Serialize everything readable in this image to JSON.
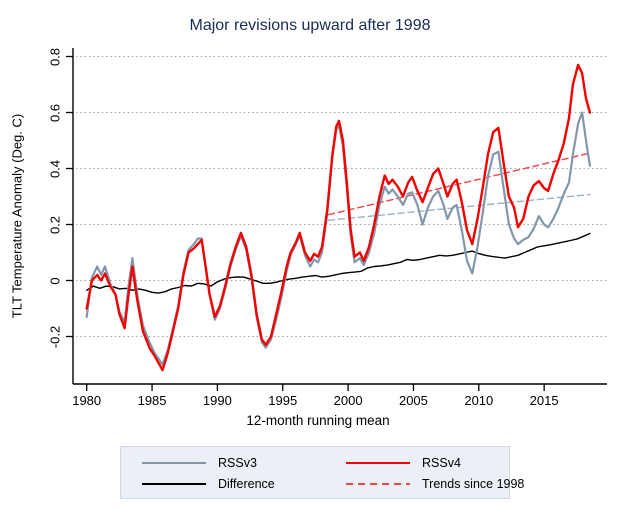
{
  "title": "Major revisions upward after 1998",
  "axes": {
    "x_label": "12-month running mean",
    "y_label": "TLT Temperature Anomaly (Deg. C)",
    "x_tick_labels": [
      "1980",
      "1985",
      "1990",
      "1995",
      "2000",
      "2005",
      "2010",
      "2015"
    ],
    "x_tick_values": [
      1980,
      1985,
      1990,
      1995,
      2000,
      2005,
      2010,
      2015
    ],
    "y_tick_labels": [
      "0.8",
      "0.6",
      "0.4",
      "0.2",
      "0",
      "-0.2"
    ],
    "y_tick_values": [
      0.8,
      0.6,
      0.4,
      0.2,
      0,
      -0.2
    ]
  },
  "colors": {
    "title_navy": "#1a2c55",
    "rssv3": "#8297ac",
    "rssv4": "#f40000",
    "difference": "#000000",
    "trend_rssv4": "#ef4348",
    "trend_rssv3": "#9cb0c6",
    "grid": "#a3a3a3",
    "axis": "#000000",
    "legend_bg": "#ebf0f6",
    "legend_border": "#d3d9e0"
  },
  "legend": {
    "items": [
      {
        "id": "rssv3",
        "label": "RSSv3",
        "style": "solid",
        "color": "#8297ac"
      },
      {
        "id": "rssv4",
        "label": "RSSv4",
        "style": "solid",
        "color": "#f40000"
      },
      {
        "id": "difference",
        "label": "Difference",
        "style": "solid",
        "color": "#000000"
      },
      {
        "id": "trends-since-1998",
        "label": "Trends since 1998",
        "style": "dashed",
        "color": "#ef4348"
      }
    ]
  },
  "chart_data": {
    "type": "line",
    "title": "Major revisions upward after 1998",
    "xlabel": "12-month running mean",
    "ylabel": "TLT Temperature Anomaly (Deg. C)",
    "xlim": [
      1979,
      2019.8
    ],
    "ylim": [
      -0.37,
      0.83
    ],
    "grid": "horizontal-dotted",
    "legend_position": "bottom",
    "series": [
      {
        "id": "trend-rssv3",
        "name": "RSSv3 trend since 1998",
        "style": "dashed",
        "color": "#9cb0c6",
        "x": [
          1998.5,
          2018.5
        ],
        "y": [
          0.215,
          0.307
        ]
      },
      {
        "id": "trend-rssv4",
        "name": "RSSv4 trend since 1998",
        "style": "dashed",
        "color": "#ef4348",
        "x": [
          1998.5,
          2018.5
        ],
        "y": [
          0.235,
          0.455
        ]
      },
      {
        "id": "difference",
        "name": "Difference",
        "style": "solid",
        "color": "#000000",
        "x": [
          1980,
          1980.5,
          1981,
          1981.5,
          1982,
          1982.5,
          1983,
          1983.5,
          1984,
          1984.5,
          1985,
          1985.5,
          1986,
          1986.5,
          1987,
          1987.5,
          1988,
          1988.5,
          1989,
          1989.5,
          1990,
          1990.5,
          1991,
          1991.5,
          1992,
          1992.5,
          1993,
          1993.5,
          1994,
          1994.5,
          1995,
          1995.5,
          1996,
          1996.5,
          1997,
          1997.5,
          1998,
          1998.5,
          1999,
          1999.5,
          2000,
          2000.5,
          2001,
          2001.5,
          2002,
          2002.5,
          2003,
          2003.5,
          2004,
          2004.5,
          2005,
          2005.5,
          2006,
          2006.5,
          2007,
          2007.5,
          2008,
          2008.5,
          2009,
          2009.5,
          2010,
          2010.5,
          2011,
          2011.5,
          2012,
          2012.5,
          2013,
          2013.5,
          2014,
          2014.5,
          2015,
          2015.5,
          2016,
          2016.5,
          2017,
          2017.5,
          2018,
          2018.5
        ],
        "y": [
          -0.035,
          -0.02,
          -0.028,
          -0.02,
          -0.022,
          -0.03,
          -0.028,
          -0.035,
          -0.03,
          -0.035,
          -0.042,
          -0.045,
          -0.04,
          -0.03,
          -0.025,
          -0.018,
          -0.02,
          -0.01,
          -0.012,
          -0.02,
          -0.005,
          0.005,
          0.01,
          0.013,
          0.012,
          0.005,
          -0.002,
          -0.01,
          -0.01,
          -0.006,
          0.0,
          0.005,
          0.008,
          0.012,
          0.015,
          0.018,
          0.012,
          0.015,
          0.02,
          0.025,
          0.028,
          0.03,
          0.033,
          0.045,
          0.05,
          0.052,
          0.055,
          0.06,
          0.065,
          0.075,
          0.072,
          0.075,
          0.08,
          0.085,
          0.09,
          0.088,
          0.09,
          0.095,
          0.1,
          0.105,
          0.096,
          0.09,
          0.086,
          0.083,
          0.08,
          0.085,
          0.09,
          0.1,
          0.11,
          0.12,
          0.124,
          0.128,
          0.133,
          0.138,
          0.143,
          0.148,
          0.158,
          0.168
        ]
      },
      {
        "id": "rssv3",
        "name": "RSSv3",
        "style": "solid",
        "color": "#8297ac",
        "x": [
          1980.0,
          1980.4,
          1980.8,
          1981.1,
          1981.4,
          1981.8,
          1982.2,
          1982.5,
          1982.9,
          1983.2,
          1983.5,
          1983.9,
          1984.3,
          1984.8,
          1985.2,
          1985.8,
          1986.2,
          1986.6,
          1987.0,
          1987.4,
          1987.8,
          1988.2,
          1988.5,
          1988.8,
          1989.1,
          1989.4,
          1989.8,
          1990.2,
          1990.6,
          1991.0,
          1991.4,
          1991.8,
          1992.2,
          1992.6,
          1993.0,
          1993.4,
          1993.7,
          1994.1,
          1994.5,
          1994.9,
          1995.3,
          1995.6,
          1996.0,
          1996.3,
          1996.7,
          1997.1,
          1997.4,
          1997.7,
          1998.0,
          1998.4,
          1998.8,
          1999.1,
          1999.3,
          1999.6,
          1999.9,
          2000.2,
          2000.5,
          2000.9,
          2001.2,
          2001.6,
          2002.0,
          2002.4,
          2002.8,
          2003.1,
          2003.4,
          2003.8,
          2004.2,
          2004.6,
          2004.9,
          2005.3,
          2005.7,
          2006.1,
          2006.5,
          2006.9,
          2007.3,
          2007.6,
          2008.0,
          2008.3,
          2008.7,
          2009.1,
          2009.5,
          2009.9,
          2010.3,
          2010.7,
          2011.1,
          2011.5,
          2011.9,
          2012.3,
          2012.7,
          2013.0,
          2013.4,
          2013.8,
          2014.2,
          2014.6,
          2015.0,
          2015.3,
          2015.7,
          2016.1,
          2016.5,
          2016.9,
          2017.2,
          2017.6,
          2017.9,
          2018.2,
          2018.5
        ],
        "y": [
          -0.13,
          0.01,
          0.05,
          0.02,
          0.05,
          -0.01,
          -0.05,
          -0.11,
          -0.15,
          -0.02,
          0.08,
          -0.06,
          -0.16,
          -0.22,
          -0.26,
          -0.3,
          -0.25,
          -0.17,
          -0.09,
          0.03,
          0.11,
          0.13,
          0.15,
          0.15,
          0.05,
          -0.05,
          -0.14,
          -0.1,
          -0.03,
          0.05,
          0.11,
          0.16,
          0.11,
          0.01,
          -0.13,
          -0.22,
          -0.24,
          -0.21,
          -0.14,
          -0.06,
          0.035,
          0.09,
          0.13,
          0.16,
          0.09,
          0.05,
          0.075,
          0.065,
          0.1,
          0.24,
          0.44,
          0.54,
          0.555,
          0.48,
          0.33,
          0.16,
          0.065,
          0.08,
          0.055,
          0.1,
          0.17,
          0.27,
          0.335,
          0.31,
          0.325,
          0.3,
          0.27,
          0.31,
          0.315,
          0.27,
          0.2,
          0.26,
          0.3,
          0.32,
          0.27,
          0.22,
          0.26,
          0.27,
          0.18,
          0.07,
          0.025,
          0.12,
          0.24,
          0.37,
          0.45,
          0.46,
          0.33,
          0.2,
          0.15,
          0.13,
          0.145,
          0.155,
          0.185,
          0.23,
          0.2,
          0.19,
          0.22,
          0.26,
          0.31,
          0.35,
          0.45,
          0.56,
          0.6,
          0.5,
          0.41
        ]
      },
      {
        "id": "rssv4",
        "name": "RSSv4",
        "style": "solid",
        "color": "#f40000",
        "x": [
          1980.0,
          1980.4,
          1980.8,
          1981.1,
          1981.4,
          1981.8,
          1982.2,
          1982.5,
          1982.9,
          1983.2,
          1983.5,
          1983.9,
          1984.3,
          1984.8,
          1985.2,
          1985.8,
          1986.2,
          1986.6,
          1987.0,
          1987.4,
          1987.8,
          1988.2,
          1988.5,
          1988.8,
          1989.1,
          1989.4,
          1989.8,
          1990.2,
          1990.6,
          1991.0,
          1991.4,
          1991.8,
          1992.2,
          1992.6,
          1993.0,
          1993.4,
          1993.7,
          1994.1,
          1994.5,
          1994.9,
          1995.3,
          1995.6,
          1996.0,
          1996.3,
          1996.7,
          1997.1,
          1997.4,
          1997.7,
          1998.0,
          1998.4,
          1998.8,
          1999.1,
          1999.3,
          1999.6,
          1999.9,
          2000.2,
          2000.5,
          2000.9,
          2001.2,
          2001.6,
          2002.0,
          2002.4,
          2002.8,
          2003.1,
          2003.4,
          2003.8,
          2004.2,
          2004.6,
          2004.9,
          2005.3,
          2005.7,
          2006.1,
          2006.5,
          2006.9,
          2007.3,
          2007.6,
          2008.0,
          2008.3,
          2008.7,
          2009.1,
          2009.5,
          2009.9,
          2010.3,
          2010.7,
          2011.1,
          2011.5,
          2011.9,
          2012.3,
          2012.7,
          2013.0,
          2013.4,
          2013.8,
          2014.2,
          2014.6,
          2015.0,
          2015.3,
          2015.7,
          2016.1,
          2016.5,
          2016.9,
          2017.2,
          2017.6,
          2017.9,
          2018.2,
          2018.5
        ],
        "y": [
          -0.1,
          0.0,
          0.02,
          0.0,
          0.025,
          -0.02,
          -0.05,
          -0.12,
          -0.17,
          -0.05,
          0.05,
          -0.08,
          -0.18,
          -0.24,
          -0.27,
          -0.32,
          -0.26,
          -0.18,
          -0.1,
          0.02,
          0.1,
          0.115,
          0.13,
          0.145,
          0.05,
          -0.05,
          -0.13,
          -0.09,
          -0.02,
          0.06,
          0.12,
          0.17,
          0.12,
          0.02,
          -0.12,
          -0.21,
          -0.23,
          -0.2,
          -0.12,
          -0.04,
          0.05,
          0.1,
          0.135,
          0.17,
          0.1,
          0.07,
          0.095,
          0.085,
          0.12,
          0.25,
          0.45,
          0.55,
          0.57,
          0.5,
          0.35,
          0.18,
          0.085,
          0.1,
          0.07,
          0.12,
          0.2,
          0.3,
          0.375,
          0.345,
          0.36,
          0.335,
          0.3,
          0.35,
          0.37,
          0.32,
          0.28,
          0.33,
          0.38,
          0.4,
          0.345,
          0.3,
          0.345,
          0.36,
          0.28,
          0.18,
          0.13,
          0.22,
          0.33,
          0.45,
          0.53,
          0.545,
          0.42,
          0.3,
          0.26,
          0.19,
          0.22,
          0.3,
          0.34,
          0.355,
          0.33,
          0.32,
          0.38,
          0.43,
          0.49,
          0.58,
          0.7,
          0.77,
          0.74,
          0.65,
          0.6
        ]
      }
    ]
  }
}
